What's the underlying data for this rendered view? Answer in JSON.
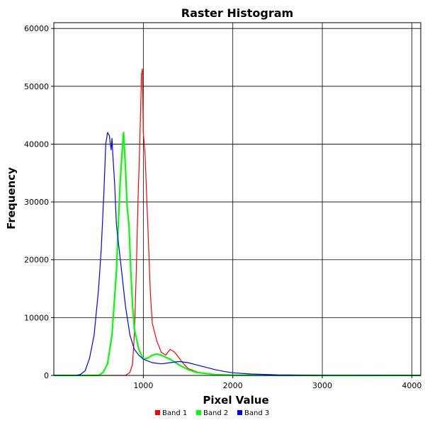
{
  "chart_data": {
    "type": "line",
    "title": "Raster Histogram",
    "xlabel": "Pixel Value",
    "ylabel": "Frequency",
    "xlim": [
      0,
      4100
    ],
    "ylim": [
      0,
      61000
    ],
    "x_ticks": [
      1000,
      2000,
      3000,
      4000
    ],
    "x_tick_labels": [
      "1000",
      "2000",
      "3000",
      "4000"
    ],
    "y_ticks": [
      0,
      10000,
      20000,
      30000,
      40000,
      50000,
      60000
    ],
    "y_tick_labels": [
      "0",
      "10000",
      "20000",
      "30000",
      "40000",
      "50000",
      "60000"
    ],
    "grid": true,
    "legend_position": "bottom-center",
    "series": [
      {
        "name": "Band 1",
        "color": "#ff0000",
        "x": [
          0,
          800,
          850,
          880,
          900,
          920,
          940,
          960,
          980,
          990,
          1000,
          1020,
          1040,
          1060,
          1080,
          1100,
          1150,
          1200,
          1250,
          1300,
          1350,
          1400,
          1450,
          1500,
          1600,
          1700,
          1800,
          2000,
          2500,
          4100
        ],
        "y": [
          0,
          0,
          500,
          2000,
          7000,
          17000,
          30000,
          40000,
          52000,
          53000,
          42000,
          38000,
          30000,
          22000,
          14000,
          9000,
          6000,
          4000,
          3500,
          4500,
          4000,
          3000,
          2000,
          1200,
          600,
          300,
          150,
          50,
          0,
          0
        ]
      },
      {
        "name": "Band 2",
        "color": "#00ff00",
        "x": [
          0,
          500,
          550,
          600,
          650,
          700,
          720,
          740,
          760,
          780,
          800,
          820,
          840,
          860,
          880,
          900,
          950,
          1000,
          1050,
          1100,
          1150,
          1200,
          1300,
          1400,
          1500,
          1600,
          1800,
          2000,
          2500,
          4100
        ],
        "y": [
          0,
          0,
          500,
          2000,
          7000,
          18000,
          26000,
          33000,
          38000,
          42000,
          36000,
          29000,
          26000,
          18000,
          12000,
          8000,
          4500,
          2800,
          3000,
          3500,
          3700,
          3500,
          2800,
          1800,
          1000,
          500,
          150,
          50,
          0,
          0
        ]
      },
      {
        "name": "Band 3",
        "color": "#0000ff",
        "x": [
          0,
          250,
          300,
          350,
          400,
          450,
          500,
          530,
          560,
          580,
          600,
          620,
          640,
          650,
          660,
          680,
          700,
          750,
          800,
          850,
          900,
          950,
          1000,
          1100,
          1200,
          1300,
          1400,
          1500,
          1600,
          1700,
          1800,
          1900,
          2000,
          2200,
          2500,
          3000,
          4100
        ],
        "y": [
          0,
          0,
          200,
          800,
          3000,
          7000,
          15000,
          22000,
          32000,
          40000,
          42000,
          41500,
          39000,
          41000,
          38000,
          33000,
          26000,
          19000,
          12000,
          7000,
          4500,
          3500,
          2800,
          2200,
          2000,
          2200,
          2400,
          2200,
          1800,
          1400,
          1000,
          700,
          450,
          250,
          100,
          20,
          0
        ]
      }
    ]
  }
}
